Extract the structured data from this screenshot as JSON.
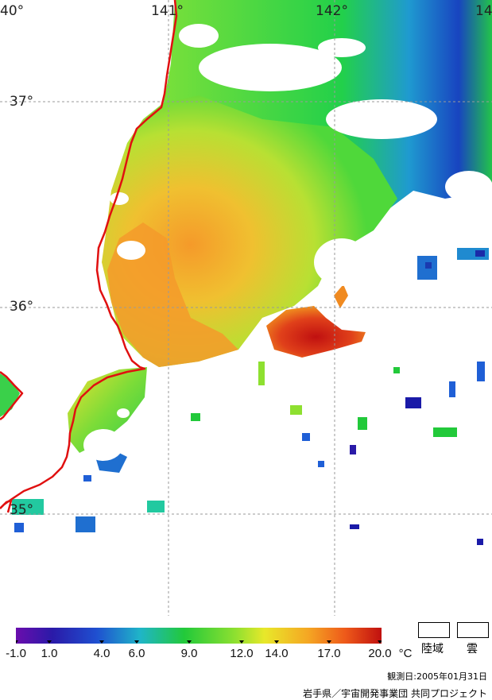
{
  "map": {
    "lon_labels": [
      "40°",
      "141°",
      "142°",
      "14"
    ],
    "lat_labels": [
      "37°",
      "36°",
      "35°"
    ]
  },
  "colorbar": {
    "ticks": [
      "-1.0",
      "1.0",
      "4.0",
      "6.0",
      "9.0",
      "12.0",
      "14.0",
      "17.0",
      "20.0"
    ],
    "unit": "°C",
    "colors": [
      "#6a0dad",
      "#1a1aa8",
      "#1f5fd6",
      "#1fb5c8",
      "#22c93a",
      "#8ee030",
      "#e8e82a",
      "#f5a623",
      "#ee5a1a",
      "#c0100f"
    ]
  },
  "legend": {
    "land_label": "陸域",
    "cloud_label": "雲"
  },
  "footer": {
    "observation_date": "観測日:2005年01月31日",
    "credit": "岩手県／宇宙開発事業団 共同プロジェクト"
  }
}
